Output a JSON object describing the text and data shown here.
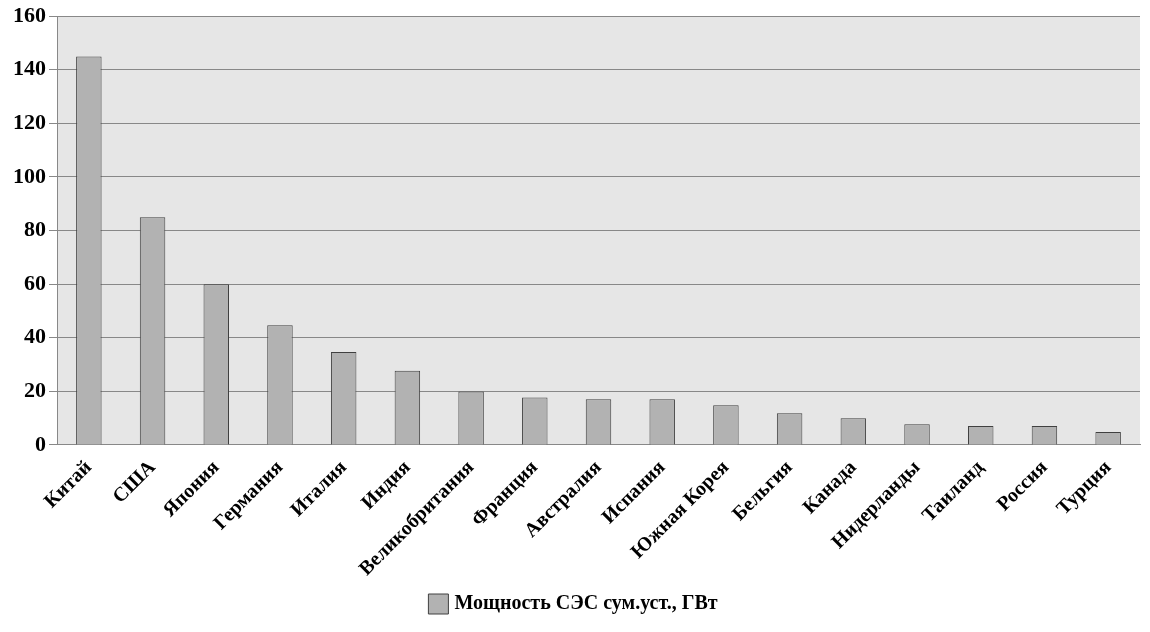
{
  "chart_data": {
    "type": "bar",
    "categories": [
      "Китай",
      "США",
      "Япония",
      "Германия",
      "Италия",
      "Индия",
      "Великобритания",
      "Франция",
      "Австралия",
      "Испания",
      "Южная Корея",
      "Бельгия",
      "Канада",
      "Нидерланды",
      "Таиланд",
      "Россия",
      "Турция"
    ],
    "series": [
      {
        "name": "Мощность СЭС сум.уст., ГВт",
        "color": "#b2b2b2",
        "values": [
          145,
          85,
          60,
          44.7,
          34.7,
          27.7,
          20,
          17.7,
          17.1,
          17.1,
          14.8,
          11.8,
          10,
          7.7,
          7.1,
          7.1,
          4.8
        ]
      }
    ],
    "ylim": [
      0,
      160
    ],
    "yticks": [
      0,
      20,
      40,
      60,
      80,
      100,
      120,
      140,
      160
    ],
    "grid": "y",
    "legend": "bottom"
  }
}
